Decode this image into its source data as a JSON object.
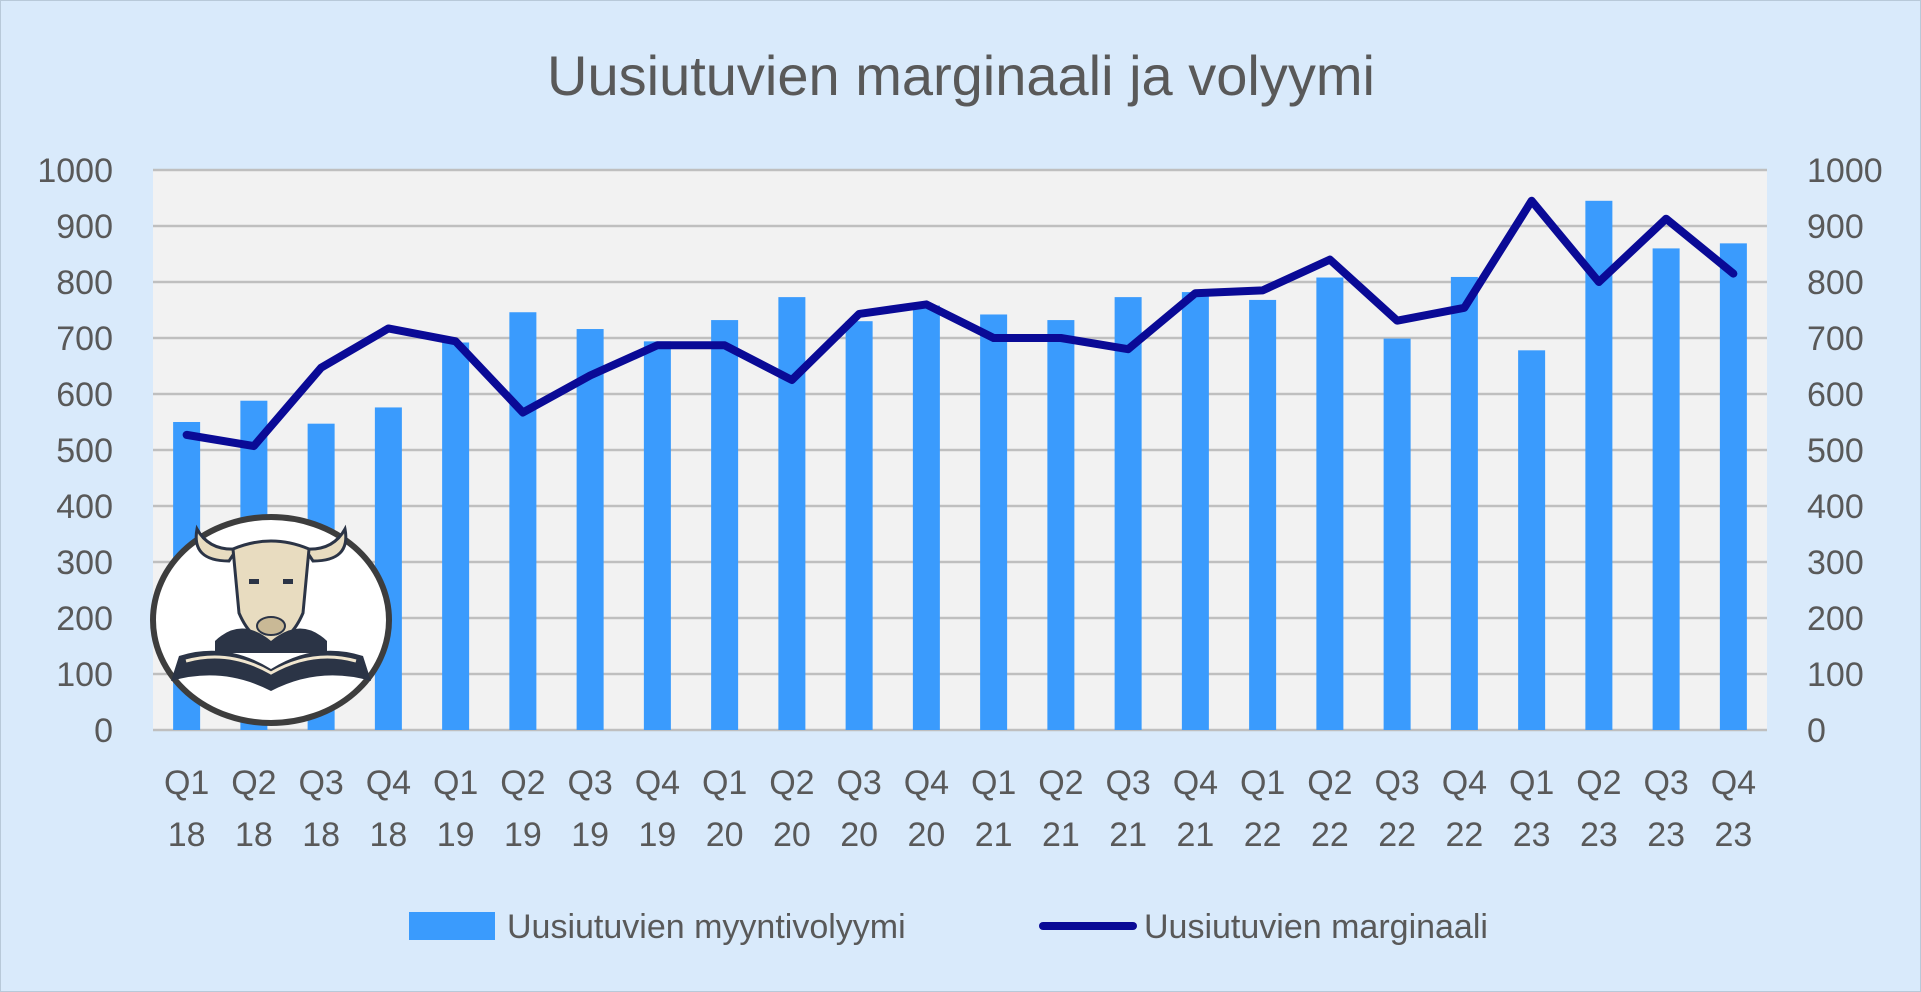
{
  "chart_data": {
    "type": "bar",
    "title": "Uusiutuvien marginaali ja volyymi",
    "categories": [
      [
        "Q1",
        "18"
      ],
      [
        "Q2",
        "18"
      ],
      [
        "Q3",
        "18"
      ],
      [
        "Q4",
        "18"
      ],
      [
        "Q1",
        "19"
      ],
      [
        "Q2",
        "19"
      ],
      [
        "Q3",
        "19"
      ],
      [
        "Q4",
        "19"
      ],
      [
        "Q1",
        "20"
      ],
      [
        "Q2",
        "20"
      ],
      [
        "Q3",
        "20"
      ],
      [
        "Q4",
        "20"
      ],
      [
        "Q1",
        "21"
      ],
      [
        "Q2",
        "21"
      ],
      [
        "Q3",
        "21"
      ],
      [
        "Q4",
        "21"
      ],
      [
        "Q1",
        "22"
      ],
      [
        "Q2",
        "22"
      ],
      [
        "Q3",
        "22"
      ],
      [
        "Q4",
        "22"
      ],
      [
        "Q1",
        "23"
      ],
      [
        "Q2",
        "23"
      ],
      [
        "Q3",
        "23"
      ],
      [
        "Q4",
        "23"
      ]
    ],
    "series": [
      {
        "name": "Uusiutuvien myyntivolyymi",
        "type": "bar",
        "color": "#3a9bfd",
        "axis": "left",
        "values": [
          550,
          588,
          547,
          576,
          692,
          746,
          716,
          694,
          732,
          773,
          730,
          758,
          742,
          732,
          773,
          782,
          768,
          808,
          699,
          809,
          678,
          945,
          860,
          869
        ]
      },
      {
        "name": "Uusiutuvien marginaali",
        "type": "line",
        "color": "#0a0a96",
        "axis": "right",
        "values": [
          527,
          507,
          647,
          717,
          694,
          567,
          633,
          687,
          687,
          625,
          743,
          760,
          700,
          700,
          680,
          780,
          785,
          840,
          731,
          754,
          945,
          800,
          913,
          815
        ]
      }
    ],
    "y_left": {
      "min": 0,
      "max": 1000,
      "step": 100,
      "ticks": [
        "0",
        "100",
        "200",
        "300",
        "400",
        "500",
        "600",
        "700",
        "800",
        "900",
        "1000"
      ]
    },
    "y_right": {
      "min": 0,
      "max": 1000,
      "step": 100,
      "ticks": [
        "0",
        "100",
        "200",
        "300",
        "400",
        "500",
        "600",
        "700",
        "800",
        "900",
        "1000"
      ]
    },
    "grid": true,
    "legend_position": "bottom",
    "colors": {
      "background": "#d9eafb",
      "plot_area": "#f2f2f2",
      "gridline": "#bfbfbf",
      "text": "#595959"
    }
  },
  "logo": {
    "icon": "bull-reading-book-logo"
  }
}
